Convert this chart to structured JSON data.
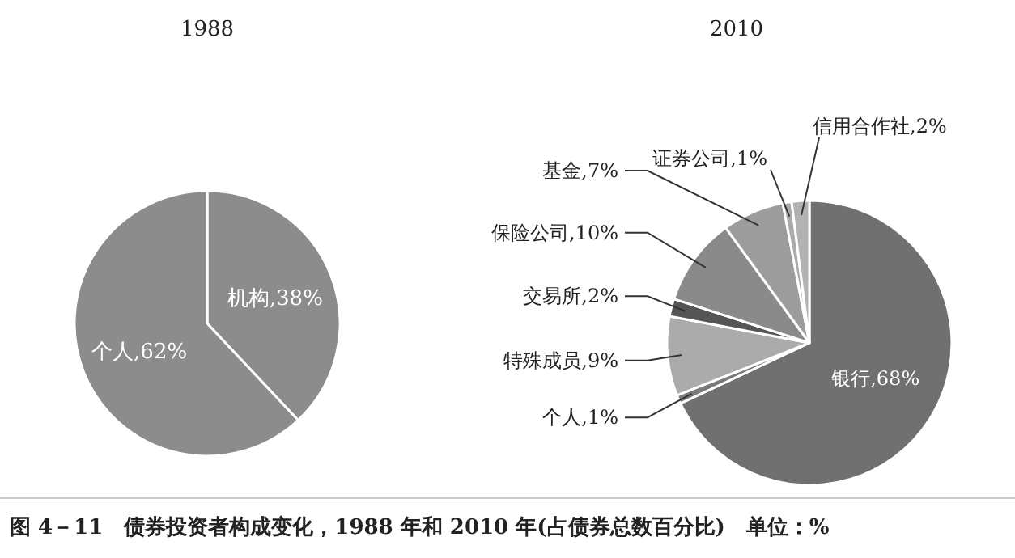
{
  "chart_data": [
    {
      "type": "pie",
      "title": "1988",
      "categories": [
        "机构",
        "个人"
      ],
      "values": [
        38,
        62
      ],
      "value_labels": [
        "38%",
        "62%"
      ],
      "colors": [
        "#8c8c8c",
        "#8c8c8c"
      ],
      "annotations": [
        "图 4－11　债券投资者构成变化，1988 年和 2010 年(占债券总数百分比)　单位：%"
      ]
    },
    {
      "type": "pie",
      "title": "2010",
      "categories": [
        "银行",
        "个人",
        "特殊成员",
        "交易所",
        "保险公司",
        "基金",
        "证券公司",
        "信用合作社"
      ],
      "values": [
        68,
        1,
        9,
        2,
        10,
        7,
        1,
        2
      ],
      "value_labels": [
        "68%",
        "1%",
        "9%",
        "2%",
        "10%",
        "7%",
        "1%",
        "2%"
      ],
      "colors": [
        "#707070",
        "#7a7a7a",
        "#ababab",
        "#555555",
        "#8a8a8a",
        "#9c9c9c",
        "#aaaaaa",
        "#b2b2b2"
      ]
    }
  ]
}
